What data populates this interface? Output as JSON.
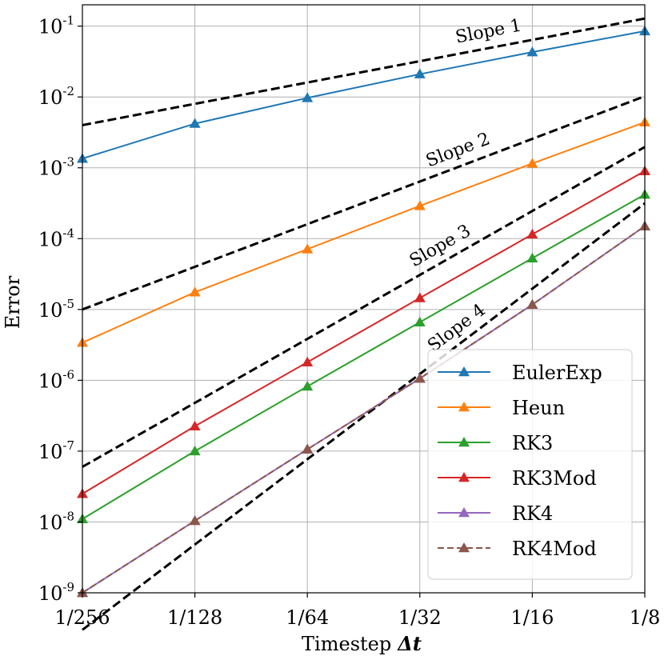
{
  "chart_data": {
    "type": "line",
    "title": "",
    "xlabel": "Timestep",
    "xlabel_symbol": "Δt",
    "ylabel": "Error",
    "xscale": "log2",
    "yscale": "log10",
    "x": [
      0.00390625,
      0.0078125,
      0.015625,
      0.03125,
      0.0625,
      0.125
    ],
    "x_tick_labels": [
      "1/256",
      "1/128",
      "1/64",
      "1/32",
      "1/16",
      "1/8"
    ],
    "ylim": [
      1e-09,
      0.2
    ],
    "y_ticks": [
      {
        "exp": -9,
        "base": "10",
        "sup": "-9"
      },
      {
        "exp": -8,
        "base": "10",
        "sup": "-8"
      },
      {
        "exp": -7,
        "base": "10",
        "sup": "-7"
      },
      {
        "exp": -6,
        "base": "10",
        "sup": "-6"
      },
      {
        "exp": -5,
        "base": "10",
        "sup": "-5"
      },
      {
        "exp": -4,
        "base": "10",
        "sup": "-4"
      },
      {
        "exp": -3,
        "base": "10",
        "sup": "-3"
      },
      {
        "exp": -2,
        "base": "10",
        "sup": "-2"
      },
      {
        "exp": -1,
        "base": "10",
        "sup": "-1"
      }
    ],
    "grid": true,
    "legend_position": "lower-right",
    "series": [
      {
        "name": "EulerExp",
        "color": "#1f77b4",
        "linestyle": "solid",
        "marker": "triangle-up",
        "values": [
          0.00135,
          0.0042,
          0.0097,
          0.021,
          0.043,
          0.085
        ]
      },
      {
        "name": "Heun",
        "color": "#ff7f0e",
        "linestyle": "solid",
        "marker": "triangle-up",
        "values": [
          3.4e-06,
          1.75e-05,
          7.1e-05,
          0.00029,
          0.00115,
          0.0044
        ]
      },
      {
        "name": "RK3",
        "color": "#2ca02c",
        "linestyle": "solid",
        "marker": "triangle-up",
        "values": [
          1.1e-08,
          1e-07,
          8.2e-07,
          6.6e-06,
          5.3e-05,
          0.00042
        ]
      },
      {
        "name": "RK3Mod",
        "color": "#d62728",
        "linestyle": "solid",
        "marker": "triangle-up",
        "values": [
          2.5e-08,
          2.25e-07,
          1.8e-06,
          1.45e-05,
          0.000115,
          0.0009
        ]
      },
      {
        "name": "RK4",
        "color": "#9467bd",
        "linestyle": "solid",
        "marker": "triangle-up",
        "values": [
          1e-09,
          1.04e-08,
          1.06e-07,
          1.06e-06,
          1.17e-05,
          0.00015
        ]
      },
      {
        "name": "RK4Mod",
        "color": "#8c564b",
        "linestyle": "dashed",
        "marker": "triangle-up",
        "values": [
          1e-09,
          1.04e-08,
          1.06e-07,
          1.06e-06,
          1.17e-05,
          0.00015
        ]
      }
    ],
    "reference_lines": [
      {
        "label": "Slope 1",
        "slope": 1,
        "y_at_first": 0.004,
        "y_at_last": 0.128
      },
      {
        "label": "Slope 2",
        "slope": 2,
        "y_at_first": 1e-05,
        "y_at_last": 0.01024
      },
      {
        "label": "Slope 3",
        "slope": 3,
        "y_at_first": 6e-08,
        "y_at_last": 0.0019661
      },
      {
        "label": "Slope 4",
        "slope": 4,
        "y_at_first": 3e-10,
        "y_at_last": 0.00031457
      }
    ]
  }
}
